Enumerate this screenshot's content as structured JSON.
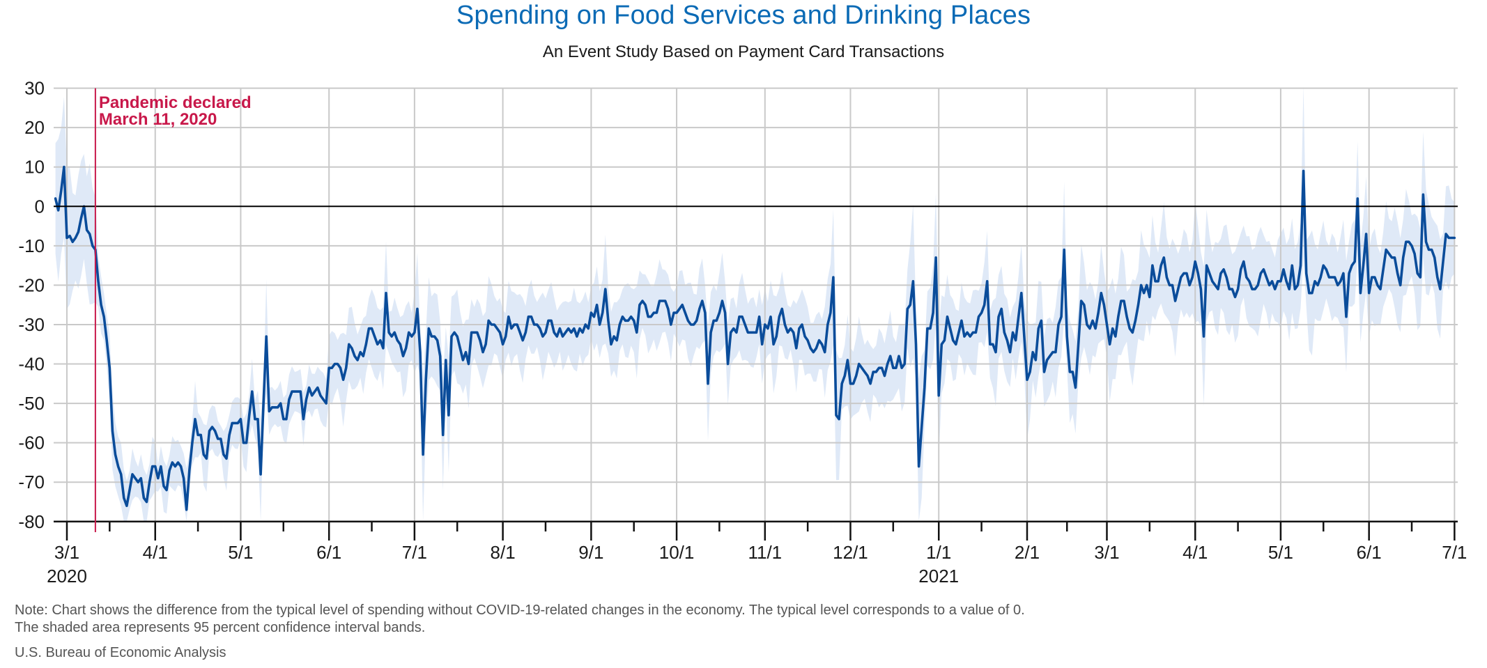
{
  "title": "Spending on Food Services and Drinking Places",
  "subtitle": "An Event Study Based on Payment Card Transactions",
  "notes": [
    "Note: Chart shows the difference from the typical level of spending without COVID-19-related changes in the economy. The typical level corresponds to a value of 0.",
    "The shaded area represents 95 percent confidence interval bands."
  ],
  "source": "U.S. Bureau of Economic Analysis",
  "colors": {
    "title": "#0a6ab5",
    "line": "#0a4c9a",
    "band": "#dfe9f7",
    "annotation": "#c8184a",
    "grid": "#c9c9c9",
    "zero_line": "#000000"
  },
  "chart_data": {
    "type": "line",
    "title": "Spending on Food Services and Drinking Places",
    "subtitle": "An Event Study Based on Payment Card Transactions",
    "xlabel": "",
    "ylabel": "",
    "ylim": [
      -80,
      30
    ],
    "yticks": [
      30,
      20,
      10,
      0,
      -10,
      -20,
      -30,
      -40,
      -50,
      -60,
      -70,
      -80
    ],
    "ytick_labels": [
      "30",
      "20",
      "10",
      "0",
      "-10",
      "-20",
      "-30",
      "-40",
      "-50",
      "-60",
      "-70",
      "-80"
    ],
    "xlim": [
      "2020-02-26",
      "2021-07-01"
    ],
    "x_origin_date": "2020-03-01",
    "xticks_major": [
      {
        "date": "2020-03-01",
        "label": "3/1",
        "year": "2020"
      },
      {
        "date": "2020-04-01",
        "label": "4/1"
      },
      {
        "date": "2020-05-01",
        "label": "5/1"
      },
      {
        "date": "2020-06-01",
        "label": "6/1"
      },
      {
        "date": "2020-07-01",
        "label": "7/1"
      },
      {
        "date": "2020-08-01",
        "label": "8/1"
      },
      {
        "date": "2020-09-01",
        "label": "9/1"
      },
      {
        "date": "2020-10-01",
        "label": "10/1"
      },
      {
        "date": "2020-11-01",
        "label": "11/1"
      },
      {
        "date": "2020-12-01",
        "label": "12/1"
      },
      {
        "date": "2021-01-01",
        "label": "1/1",
        "year": "2021"
      },
      {
        "date": "2021-02-01",
        "label": "2/1"
      },
      {
        "date": "2021-03-01",
        "label": "3/1"
      },
      {
        "date": "2021-04-01",
        "label": "4/1"
      },
      {
        "date": "2021-05-01",
        "label": "5/1"
      },
      {
        "date": "2021-06-01",
        "label": "6/1"
      },
      {
        "date": "2021-07-01",
        "label": "7/1"
      }
    ],
    "xticks_minor": [
      "2020-03-16",
      "2020-04-16",
      "2020-05-16",
      "2020-06-16",
      "2020-07-16",
      "2020-08-16",
      "2020-09-16",
      "2020-10-16",
      "2020-11-16",
      "2020-12-16",
      "2021-01-16",
      "2021-02-15",
      "2021-03-16",
      "2021-04-16",
      "2021-05-16",
      "2021-06-16"
    ],
    "grid": true,
    "zero_line": true,
    "annotation": {
      "date": "2020-03-11",
      "lines": [
        "Pandemic declared",
        "March 11, 2020"
      ]
    },
    "series": [
      {
        "name": "Spending difference from typical level",
        "start_date": "2020-02-26",
        "frequency": "daily",
        "values": [
          2,
          -1,
          4,
          10,
          -8,
          -7.5,
          -9,
          -8,
          -6.5,
          -3,
          0,
          -6,
          -7,
          -10,
          -11,
          -19,
          -25,
          -28,
          -34,
          -41,
          -57,
          -63,
          -66,
          -68,
          -74,
          -76,
          -72,
          -68,
          -69,
          -70,
          -69,
          -74,
          -75,
          -70,
          -66,
          -66,
          -69,
          -66,
          -71,
          -72,
          -67,
          -65,
          -66,
          -65,
          -66,
          -69,
          -77,
          -67,
          -60,
          -54,
          -58,
          -58,
          -63,
          -64,
          -57,
          -56,
          -57,
          -59,
          -59,
          -63,
          -64,
          -58,
          -55,
          -55,
          -55,
          -54,
          -60,
          -60,
          -53,
          -47,
          -54,
          -54,
          -68,
          -50,
          -33,
          -52,
          -51,
          -51,
          -51,
          -50,
          -54,
          -54,
          -49,
          -47,
          -47,
          -47,
          -47,
          -54,
          -49,
          -46,
          -48,
          -47,
          -46,
          -48,
          -49,
          -50,
          -41,
          -41,
          -40,
          -40,
          -41,
          -44,
          -41,
          -35,
          -36,
          -38,
          -39,
          -37,
          -38,
          -35,
          -31,
          -31,
          -33,
          -35,
          -34,
          -36,
          -22,
          -32,
          -33,
          -32,
          -34,
          -35,
          -38,
          -36,
          -32,
          -33,
          -32,
          -26,
          -37,
          -63,
          -44,
          -31,
          -33,
          -33,
          -34,
          -38,
          -58,
          -39,
          -53,
          -33,
          -32,
          -33,
          -36,
          -39,
          -37,
          -40,
          -32,
          -32,
          -32,
          -34,
          -37,
          -35,
          -29,
          -30,
          -30,
          -31,
          -32,
          -35,
          -33,
          -28,
          -31,
          -30,
          -30,
          -32,
          -34,
          -32,
          -28,
          -28,
          -30,
          -30,
          -31,
          -33,
          -32,
          -29,
          -29,
          -32,
          -33,
          -31,
          -33,
          -32,
          -31,
          -32,
          -31,
          -33,
          -31,
          -32,
          -30,
          -31,
          -27,
          -28,
          -25,
          -30,
          -27,
          -21,
          -29,
          -35,
          -33,
          -34,
          -30,
          -28,
          -29,
          -29,
          -28,
          -29,
          -32,
          -25,
          -24,
          -25,
          -28,
          -28,
          -27,
          -27,
          -24,
          -24,
          -24,
          -26,
          -30,
          -27,
          -27,
          -26,
          -25,
          -27,
          -29,
          -30,
          -30,
          -29,
          -26,
          -24,
          -27,
          -45,
          -32,
          -29,
          -29,
          -27,
          -24,
          -27,
          -40,
          -32,
          -31,
          -32,
          -28,
          -28,
          -30,
          -32,
          -32,
          -32,
          -32,
          -28,
          -35,
          -30,
          -31,
          -28,
          -35,
          -33,
          -28,
          -26,
          -30,
          -32,
          -31,
          -32,
          -36,
          -31,
          -30,
          -33,
          -34,
          -36,
          -37,
          -36,
          -34,
          -35,
          -37,
          -30,
          -27,
          -18,
          -53,
          -54,
          -45,
          -43,
          -39,
          -45,
          -45,
          -43,
          -40,
          -41,
          -42,
          -43,
          -45,
          -42,
          -42,
          -41,
          -41,
          -43,
          -40,
          -38,
          -41,
          -41,
          -38,
          -41,
          -40,
          -26,
          -25,
          -19,
          -35,
          -66,
          -56,
          -46,
          -31,
          -31,
          -27,
          -13,
          -48,
          -35,
          -34,
          -28,
          -31,
          -34,
          -35,
          -32,
          -29,
          -33,
          -32,
          -33,
          -32,
          -32,
          -28,
          -27,
          -25,
          -19,
          -35,
          -35,
          -37,
          -28,
          -26,
          -32,
          -34,
          -37,
          -32,
          -34,
          -28,
          -22,
          -33,
          -44,
          -42,
          -37,
          -39,
          -31,
          -29,
          -42,
          -39,
          -38,
          -37,
          -37,
          -30,
          -28,
          -11,
          -33,
          -42,
          -42,
          -46,
          -35,
          -24,
          -25,
          -30,
          -31,
          -29,
          -31,
          -27,
          -22,
          -25,
          -30,
          -35,
          -31,
          -33,
          -28,
          -24,
          -24,
          -28,
          -31,
          -32,
          -29,
          -25,
          -20,
          -22,
          -20,
          -23,
          -15,
          -19,
          -19,
          -15,
          -13,
          -18,
          -20,
          -20,
          -24,
          -21,
          -18,
          -17,
          -17,
          -20,
          -18,
          -14,
          -17,
          -21,
          -33,
          -15,
          -17,
          -19,
          -20,
          -21,
          -17,
          -16,
          -18,
          -21,
          -21,
          -23,
          -21,
          -16,
          -14,
          -18,
          -19,
          -21,
          -21,
          -20,
          -17,
          -16,
          -18,
          -20,
          -19,
          -21,
          -19,
          -19,
          -16,
          -19,
          -21,
          -15,
          -21,
          -20,
          -15,
          9,
          -17,
          -22,
          -22,
          -19,
          -20,
          -18,
          -15,
          -16,
          -18,
          -18,
          -18,
          -20,
          -19,
          -17,
          -28,
          -17,
          -15,
          -14,
          2,
          -22,
          -15,
          -7,
          -22,
          -18,
          -18,
          -20,
          -21,
          -16,
          -11,
          -12,
          -13,
          -13,
          -17,
          -20,
          -13,
          -9,
          -9,
          -10,
          -12,
          -17,
          -18,
          3,
          -9,
          -11,
          -11,
          -13,
          -18,
          -21,
          -14,
          -7,
          -8,
          -8,
          -8
        ]
      }
    ],
    "confidence_band": {
      "name": "95 percent confidence interval",
      "approx_halfwidth_by_period": [
        {
          "from": "2020-02-26",
          "to": "2020-03-11",
          "halfwidth": 13
        },
        {
          "from": "2020-03-12",
          "to": "2020-03-20",
          "halfwidth": 6
        },
        {
          "from": "2020-03-21",
          "to": "2020-05-31",
          "halfwidth": 4.5
        },
        {
          "from": "2020-06-01",
          "to": "2020-11-30",
          "halfwidth": 7.5
        },
        {
          "from": "2020-12-01",
          "to": "2021-02-28",
          "halfwidth": 8
        },
        {
          "from": "2021-03-01",
          "to": "2021-07-01",
          "halfwidth": 9.5
        }
      ]
    }
  }
}
